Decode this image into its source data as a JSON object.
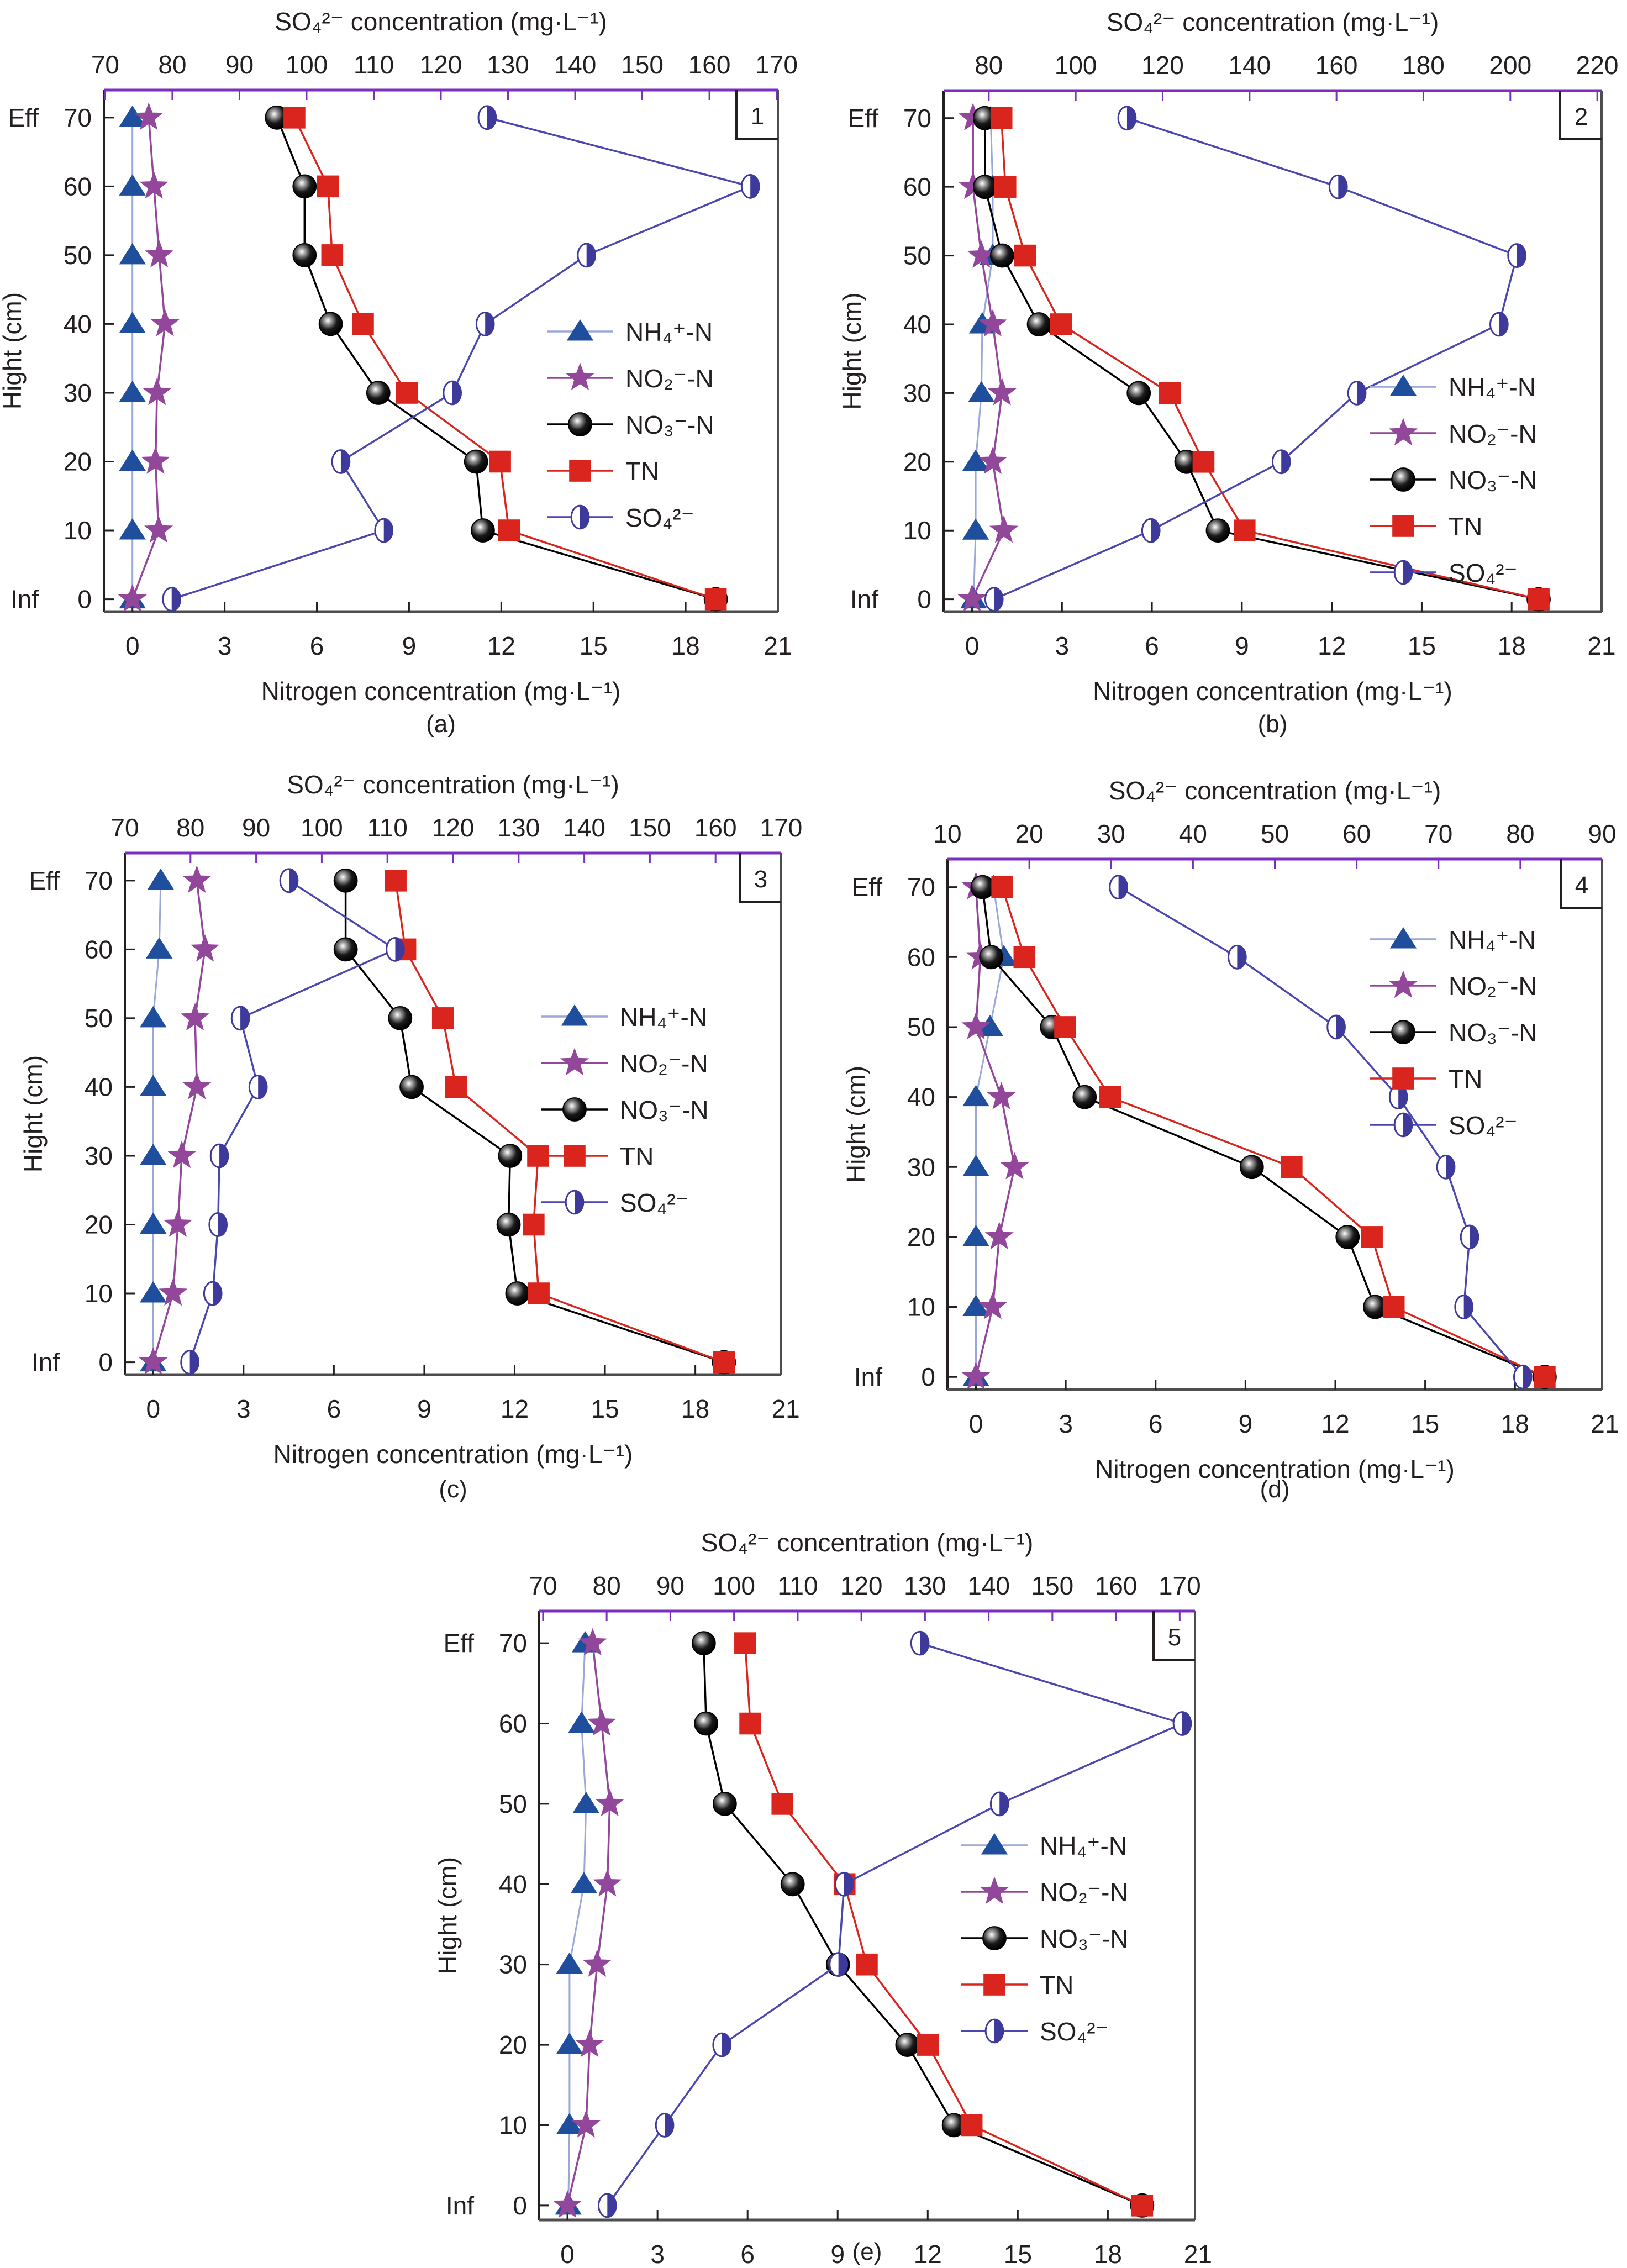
{
  "figure": {
    "y_tick_labels": [
      "0",
      "10",
      "20",
      "30",
      "40",
      "50",
      "60",
      "70"
    ],
    "y_top_tag": "Eff",
    "y_bottom_tag": "Inf",
    "ylabel": "Hight (cm)",
    "xlabel_bottom": "Nitrogen concentration (mg·L⁻¹)",
    "xlabel_top": "SO₄²⁻ concentration (mg·L⁻¹)",
    "legend": [
      {
        "key": "nh4",
        "label": "NH₄⁺-N",
        "marker": "triangle",
        "color": "#1f4e9c",
        "line_color": "#9aa8d8"
      },
      {
        "key": "no2",
        "label": "NO₂⁻-N",
        "marker": "star",
        "color": "#93479b",
        "line_color": "#93479b"
      },
      {
        "key": "no3",
        "label": "NO₃⁻-N",
        "marker": "sphere",
        "color": "#000000",
        "line_color": "#000000"
      },
      {
        "key": "tn",
        "label": "TN",
        "marker": "square",
        "color": "#d9251d",
        "line_color": "#d9251d"
      },
      {
        "key": "so4",
        "label": "SO₄²⁻",
        "marker": "half-circle",
        "color": "#3d3a9c",
        "line_color": "#4a47b0"
      }
    ],
    "colors": {
      "top_axis": "#7a2fc0",
      "frame": "#4d4d4d"
    }
  },
  "chart_data": [
    {
      "type": "line",
      "panel": "a",
      "caption": "(a)",
      "badge": "1",
      "heights": [
        70,
        60,
        50,
        40,
        30,
        20,
        10,
        0
      ],
      "x_bottom": {
        "label": "Nitrogen concentration (mg·L⁻¹)",
        "range": [
          -0.93,
          21
        ],
        "ticks": [
          0,
          3,
          6,
          9,
          12,
          15,
          18,
          21
        ]
      },
      "x_top": {
        "label": "SO₄²⁻ concentration (mg·L⁻¹)",
        "range": [
          69.8,
          170.2
        ],
        "ticks": [
          70,
          80,
          90,
          100,
          110,
          120,
          130,
          140,
          150,
          160,
          170
        ]
      },
      "y": {
        "label": "Hight (cm)",
        "range": [
          -1.8,
          74
        ],
        "ticks": [
          0,
          10,
          20,
          30,
          40,
          50,
          60,
          70
        ]
      },
      "legend_position": "right-middle",
      "series": [
        {
          "name": "NH4+-N",
          "axis": "bottom",
          "values": [
            0,
            0,
            0,
            0,
            0,
            0,
            0,
            0
          ]
        },
        {
          "name": "NO2--N",
          "axis": "bottom",
          "values": [
            0.53,
            0.7,
            0.87,
            1.06,
            0.8,
            0.75,
            0.85,
            0
          ]
        },
        {
          "name": "NO3--N",
          "axis": "bottom",
          "values": [
            4.7,
            5.6,
            5.6,
            6.45,
            8.0,
            11.18,
            11.4,
            18.98
          ]
        },
        {
          "name": "TN",
          "axis": "bottom",
          "values": [
            5.27,
            6.36,
            6.5,
            7.5,
            8.93,
            11.96,
            12.25,
            18.98
          ]
        },
        {
          "name": "SO4 2-",
          "axis": "top",
          "values": [
            126.9,
            166.1,
            141.7,
            126.6,
            121.7,
            105.1,
            111.5,
            79.9
          ]
        }
      ]
    },
    {
      "type": "line",
      "panel": "b",
      "caption": "(b)",
      "badge": "2",
      "heights": [
        70,
        60,
        50,
        40,
        30,
        20,
        10,
        0
      ],
      "x_bottom": {
        "label": "Nitrogen concentration (mg·L⁻¹)",
        "range": [
          -0.95,
          21
        ],
        "ticks": [
          0,
          3,
          6,
          9,
          12,
          15,
          18,
          21
        ]
      },
      "x_top": {
        "label": "SO₄²⁻ concentration (mg·L⁻¹)",
        "range": [
          69.6,
          221
        ],
        "ticks": [
          80,
          100,
          120,
          140,
          160,
          180,
          200,
          220
        ]
      },
      "y": {
        "label": "Hight (cm)",
        "range": [
          -1.8,
          74
        ],
        "ticks": [
          0,
          10,
          20,
          30,
          40,
          50,
          60,
          70
        ]
      },
      "legend_position": "right-lower",
      "series": [
        {
          "name": "NH4+-N",
          "axis": "bottom",
          "values": [
            0.62,
            0.69,
            0.69,
            0.34,
            0.31,
            0.12,
            0.12,
            0.05
          ]
        },
        {
          "name": "NO2--N",
          "axis": "bottom",
          "values": [
            0.03,
            0.03,
            0.31,
            0.69,
            1.0,
            0.69,
            1.06,
            0
          ]
        },
        {
          "name": "NO3--N",
          "axis": "bottom",
          "values": [
            0.43,
            0.43,
            1.0,
            2.23,
            5.56,
            7.15,
            8.2,
            18.9
          ]
        },
        {
          "name": "TN",
          "axis": "bottom",
          "values": [
            0.98,
            1.11,
            1.77,
            2.97,
            6.6,
            7.72,
            9.09,
            18.9
          ]
        },
        {
          "name": "SO4 2-",
          "axis": "top",
          "values": [
            111.8,
            160.4,
            201.5,
            197.4,
            164.7,
            147.3,
            117.3,
            81.2
          ]
        }
      ]
    },
    {
      "type": "line",
      "panel": "c",
      "caption": "(c)",
      "badge": "3",
      "heights": [
        70,
        60,
        50,
        40,
        30,
        20,
        10,
        0
      ],
      "x_bottom": {
        "label": "Nitrogen concentration (mg·L⁻¹)",
        "range": [
          -0.94,
          20.85
        ],
        "ticks": [
          0,
          3,
          6,
          9,
          12,
          15,
          18,
          21
        ]
      },
      "x_top": {
        "label": "SO₄²⁻ concentration (mg·L⁻¹)",
        "range": [
          70,
          170
        ],
        "ticks": [
          70,
          80,
          90,
          100,
          110,
          120,
          130,
          140,
          150,
          160,
          170
        ]
      },
      "y": {
        "label": "Hight (cm)",
        "range": [
          -1.8,
          74
        ],
        "ticks": [
          0,
          10,
          20,
          30,
          40,
          50,
          60,
          70
        ]
      },
      "legend_position": "right-upper",
      "series": [
        {
          "name": "NH4+-N",
          "axis": "bottom",
          "values": [
            0.25,
            0.2,
            0,
            0,
            0,
            0,
            0,
            0
          ]
        },
        {
          "name": "NO2--N",
          "axis": "bottom",
          "values": [
            1.45,
            1.72,
            1.39,
            1.45,
            0.95,
            0.82,
            0.66,
            0
          ]
        },
        {
          "name": "NO3--N",
          "axis": "bottom",
          "values": [
            6.39,
            6.39,
            8.2,
            8.58,
            11.85,
            11.8,
            12.09,
            18.95
          ]
        },
        {
          "name": "TN",
          "axis": "bottom",
          "values": [
            8.05,
            8.37,
            9.62,
            10.05,
            12.78,
            12.63,
            12.8,
            18.95
          ]
        },
        {
          "name": "SO4 2-",
          "axis": "top",
          "values": [
            95.0,
            111.2,
            87.6,
            90.3,
            84.4,
            84.2,
            83.4,
            79.9
          ]
        }
      ]
    },
    {
      "type": "line",
      "panel": "d",
      "caption": "(d)",
      "badge": "4",
      "heights": [
        70,
        60,
        50,
        40,
        30,
        20,
        10,
        0
      ],
      "x_bottom": {
        "label": "Nitrogen concentration (mg·L⁻¹)",
        "range": [
          -0.95,
          20.91
        ],
        "ticks": [
          0,
          3,
          6,
          9,
          12,
          15,
          18,
          21
        ]
      },
      "x_top": {
        "label": "SO₄²⁻ concentration (mg·L⁻¹)",
        "range": [
          10,
          90
        ],
        "ticks": [
          10,
          20,
          30,
          40,
          50,
          60,
          70,
          80,
          90
        ]
      },
      "y": {
        "label": "Hight (cm)",
        "range": [
          -1.8,
          74
        ],
        "ticks": [
          0,
          10,
          20,
          30,
          40,
          50,
          60,
          70
        ]
      },
      "legend_position": "right-upper",
      "series": [
        {
          "name": "NH4+-N",
          "axis": "bottom",
          "values": [
            0.59,
            0.93,
            0.47,
            0,
            0,
            0,
            0,
            0
          ]
        },
        {
          "name": "NO2--N",
          "axis": "bottom",
          "values": [
            0,
            0.15,
            0,
            0.85,
            1.29,
            0.78,
            0.56,
            0
          ]
        },
        {
          "name": "NO3--N",
          "axis": "bottom",
          "values": [
            0.22,
            0.51,
            2.54,
            3.63,
            9.21,
            12.41,
            13.33,
            18.99
          ]
        },
        {
          "name": "TN",
          "axis": "bottom",
          "values": [
            0.88,
            1.62,
            2.98,
            4.48,
            10.54,
            13.22,
            13.95,
            18.99
          ]
        },
        {
          "name": "SO4 2-",
          "axis": "top",
          "values": [
            30.9,
            45.4,
            57.5,
            65.1,
            70.9,
            73.8,
            73.1,
            80.3
          ]
        }
      ]
    },
    {
      "type": "line",
      "panel": "e",
      "caption": "(e)",
      "badge": "5",
      "heights": [
        70,
        60,
        50,
        40,
        30,
        20,
        10,
        0
      ],
      "x_bottom": {
        "label": "Nitrogen concentration (mg·L⁻¹)",
        "range": [
          -0.94,
          20.9
        ],
        "ticks": [
          0,
          3,
          6,
          9,
          12,
          15,
          18,
          21
        ]
      },
      "x_top": {
        "label": "SO₄²⁻ concentration (mg·L⁻¹)",
        "range": [
          69.4,
          172.4
        ],
        "ticks": [
          70,
          80,
          90,
          100,
          110,
          120,
          130,
          140,
          150,
          160,
          170
        ]
      },
      "y": {
        "label": "Hight (cm)",
        "range": [
          -1.8,
          74
        ],
        "ticks": [
          0,
          10,
          20,
          30,
          40,
          50,
          60,
          70
        ]
      },
      "legend_position": "right-lower",
      "series": [
        {
          "name": "NH4+-N",
          "axis": "bottom",
          "values": [
            0.59,
            0.47,
            0.62,
            0.55,
            0.07,
            0.07,
            0.07,
            0.03
          ]
        },
        {
          "name": "NO2--N",
          "axis": "bottom",
          "values": [
            0.84,
            1.14,
            1.41,
            1.33,
            0.99,
            0.74,
            0.62,
            0
          ]
        },
        {
          "name": "NO3--N",
          "axis": "bottom",
          "values": [
            4.54,
            4.62,
            5.24,
            7.5,
            9.01,
            11.32,
            12.87,
            19.14
          ]
        },
        {
          "name": "TN",
          "axis": "bottom",
          "values": [
            5.92,
            6.09,
            7.16,
            9.23,
            9.97,
            12.01,
            13.46,
            19.14
          ]
        },
        {
          "name": "SO4 2-",
          "axis": "top",
          "values": [
            129.2,
            170.4,
            141.7,
            117.3,
            116.4,
            98.1,
            89.1,
            80.1
          ]
        }
      ]
    }
  ]
}
